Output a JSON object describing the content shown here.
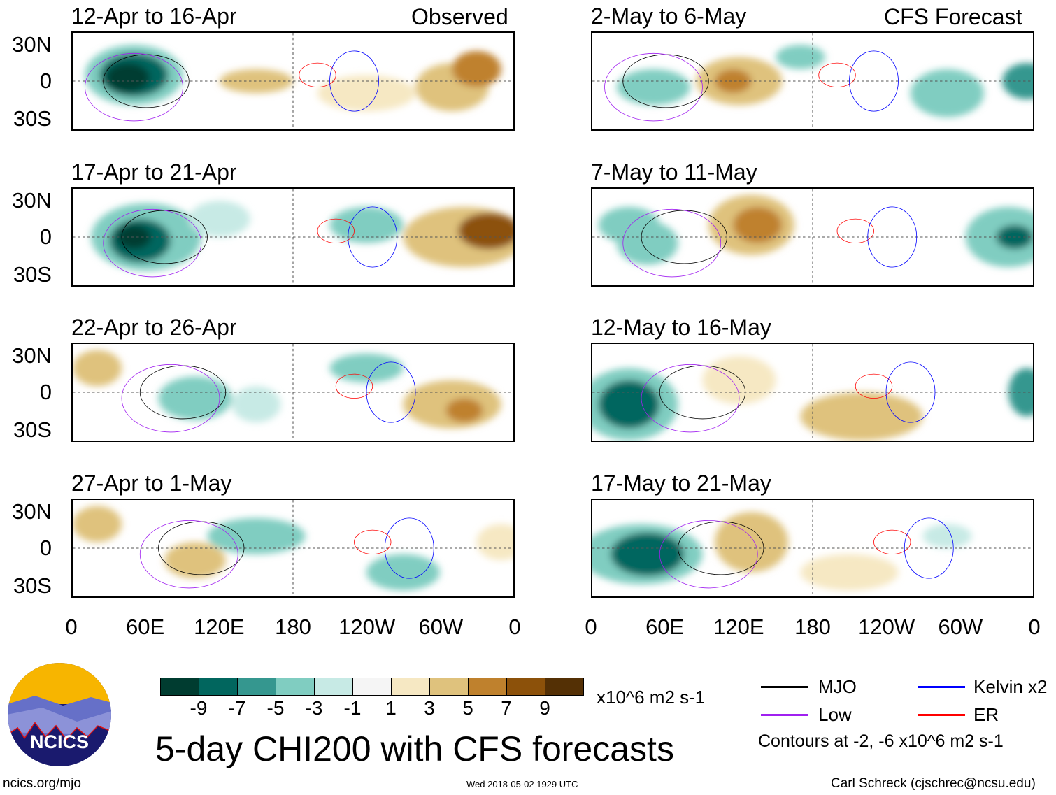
{
  "headers": {
    "observed": "Observed",
    "forecast": "CFS Forecast"
  },
  "panels_left": [
    "12-Apr to 16-Apr",
    "17-Apr to 21-Apr",
    "22-Apr to 26-Apr",
    "27-Apr to 1-May"
  ],
  "panels_right": [
    "2-May to 6-May",
    "7-May to 11-May",
    "12-May to 16-May",
    "17-May to 21-May"
  ],
  "lat_labels": [
    "30N",
    "0",
    "30S"
  ],
  "lon_labels": [
    "0",
    "60E",
    "120E",
    "180",
    "120W",
    "60W",
    "0"
  ],
  "colorbar": {
    "colors": [
      "#003c30",
      "#01665e",
      "#35978f",
      "#80cdc1",
      "#c7eae5",
      "#f5f5f5",
      "#f6e8c3",
      "#dfc27d",
      "#bf812d",
      "#8c510a",
      "#543005"
    ],
    "labels": [
      "-9",
      "-7",
      "-5",
      "-3",
      "-1",
      "1",
      "3",
      "5",
      "7",
      "9"
    ],
    "units": "x10^6 m2 s-1"
  },
  "legend": {
    "items": [
      {
        "label": "MJO",
        "color": "#000000"
      },
      {
        "label": "Kelvin x2",
        "color": "#0000ff"
      },
      {
        "label": "Low",
        "color": "#a020f0"
      },
      {
        "label": "ER",
        "color": "#ff0000"
      }
    ],
    "contours_note": "Contours at -2, -6 x10^6 m2 s-1"
  },
  "title": "5-day CHI200 with CFS forecasts",
  "logo_text": "NCICS",
  "footer": {
    "url": "ncics.org/mjo",
    "timestamp": "Wed 2018-05-02 1929 UTC",
    "author": "Carl Schreck (cjschrec@ncsu.edu)"
  }
}
